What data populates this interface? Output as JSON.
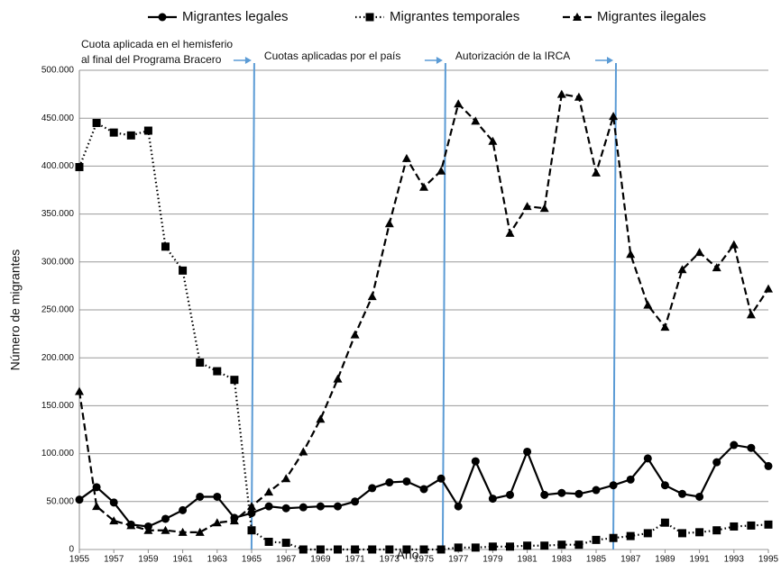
{
  "chart_data": {
    "type": "line",
    "xlabel": "Año",
    "ylabel": "Número de migrantes",
    "x": [
      1955,
      1956,
      1957,
      1958,
      1959,
      1960,
      1961,
      1962,
      1963,
      1964,
      1965,
      1966,
      1967,
      1968,
      1969,
      1970,
      1971,
      1972,
      1973,
      1974,
      1975,
      1976,
      1977,
      1978,
      1979,
      1980,
      1981,
      1982,
      1983,
      1984,
      1985,
      1986,
      1987,
      1988,
      1989,
      1990,
      1991,
      1992,
      1993,
      1994,
      1995
    ],
    "xlim": [
      1955,
      1995
    ],
    "xticks": [
      1955,
      1957,
      1959,
      1961,
      1963,
      1965,
      1967,
      1969,
      1971,
      1973,
      1975,
      1977,
      1979,
      1981,
      1983,
      1985,
      1987,
      1989,
      1991,
      1993,
      1995
    ],
    "ylim": [
      0,
      500000
    ],
    "yticks": [
      0,
      {
        "value": 50000,
        "label": "50.000"
      },
      {
        "value": 100000,
        "label": "100.000"
      },
      {
        "value": 150000,
        "label": "150.000"
      },
      {
        "value": 200000,
        "label": "200.000"
      },
      {
        "value": 250000,
        "label": "250.000"
      },
      {
        "value": 300000,
        "label": "300.000"
      },
      {
        "value": 350000,
        "label": "350.000"
      },
      {
        "value": 400000,
        "label": "400.000"
      },
      {
        "value": 450000,
        "label": "450.000"
      },
      {
        "value": 500000,
        "label": "500.000"
      }
    ],
    "grid": true,
    "series": [
      {
        "name": "Migrantes legales",
        "color": "#000000",
        "dash": "solid",
        "marker": "circle",
        "values": [
          52000,
          65000,
          49000,
          26000,
          24000,
          32000,
          41000,
          55000,
          55000,
          33000,
          38000,
          45000,
          43000,
          44000,
          45000,
          45000,
          50000,
          64000,
          70000,
          71000,
          63000,
          74000,
          45000,
          92000,
          53000,
          57000,
          102000,
          57000,
          59000,
          58000,
          62000,
          67000,
          73000,
          95000,
          67000,
          58000,
          55000,
          91000,
          109000,
          106000,
          87000
        ]
      },
      {
        "name": "Migrantes temporales",
        "color": "#000000",
        "dash": "dotted",
        "marker": "square",
        "values": [
          399000,
          445000,
          435000,
          432000,
          437000,
          316000,
          291000,
          195000,
          186000,
          177000,
          20000,
          8000,
          7000,
          0,
          0,
          0,
          0,
          0,
          0,
          0,
          0,
          0,
          2000,
          2000,
          3000,
          3000,
          4000,
          4000,
          5000,
          5000,
          10000,
          12000,
          14000,
          17000,
          28000,
          17000,
          18000,
          20000,
          24000,
          25000,
          26000
        ]
      },
      {
        "name": "Migrantes ilegales",
        "color": "#000000",
        "dash": "dashed",
        "marker": "triangle",
        "values": [
          165000,
          45000,
          30000,
          25000,
          20000,
          20000,
          18000,
          18000,
          28000,
          30000,
          45000,
          60000,
          74000,
          102000,
          136000,
          178000,
          224000,
          264000,
          340000,
          408000,
          378000,
          395000,
          465000,
          447000,
          426000,
          330000,
          358000,
          356000,
          475000,
          472000,
          393000,
          452000,
          308000,
          255000,
          232000,
          292000,
          310000,
          294000,
          318000,
          245000,
          272000
        ]
      }
    ],
    "annotations": [
      {
        "x": 1965.1,
        "lines": [
          "Cuota aplicada en el hemisferio",
          "al final del Programa Bracero"
        ]
      },
      {
        "x": 1976.2,
        "lines": [
          "Cuotas aplicadas por el país"
        ]
      },
      {
        "x": 1986.1,
        "lines": [
          "Autorización de la IRCA"
        ]
      }
    ],
    "annotation_color": "#5b9bd5"
  }
}
